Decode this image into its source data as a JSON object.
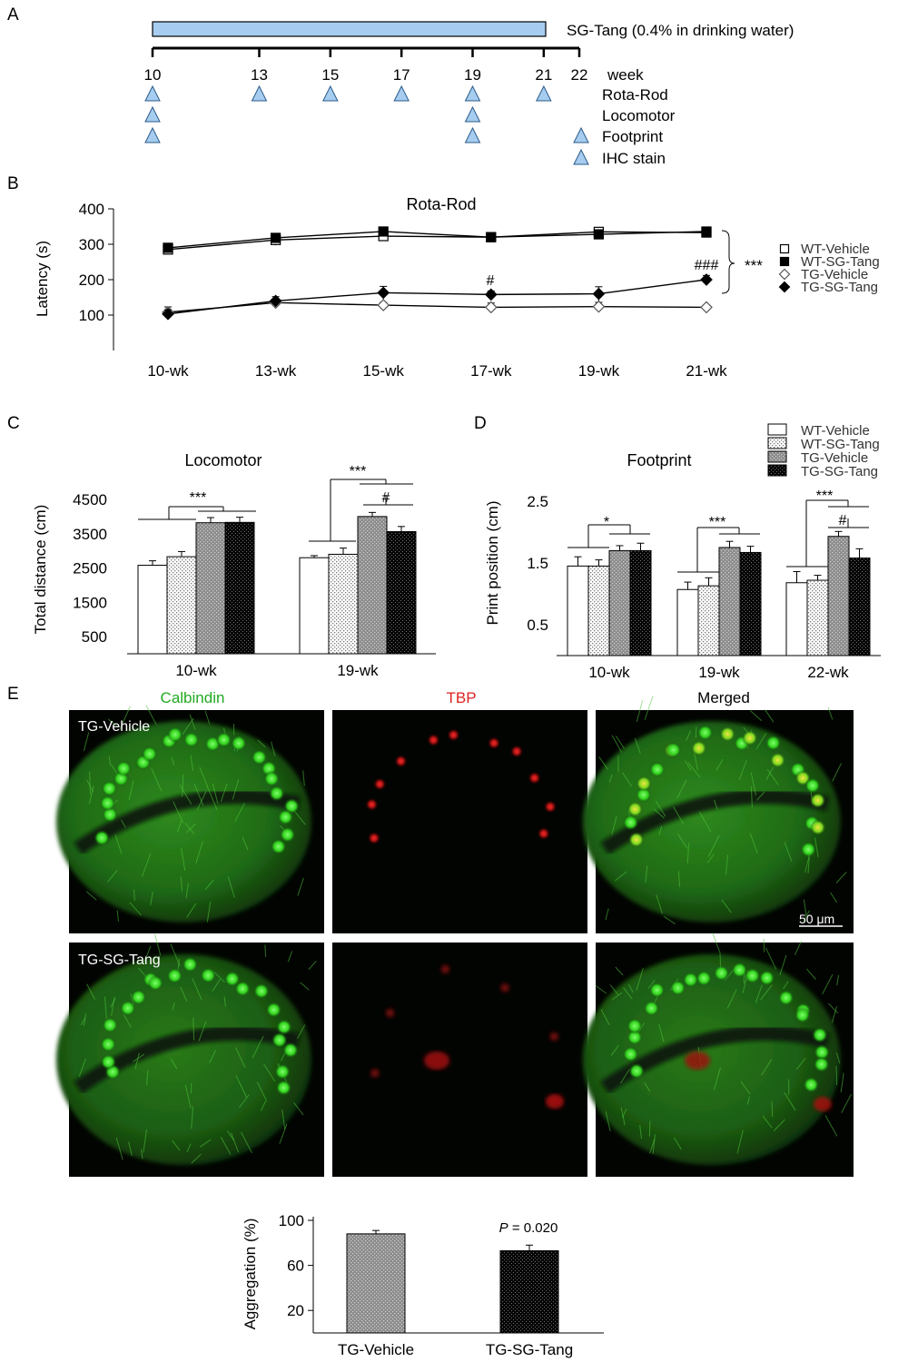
{
  "panel_letters": [
    "A",
    "B",
    "C",
    "D",
    "E"
  ],
  "panelA": {
    "bar_label": "SG-Tang (0.4% in drinking water)",
    "treatment_span_weeks": [
      10,
      21
    ],
    "weeks": [
      "10",
      "13",
      "15",
      "17",
      "19",
      "21",
      "22"
    ],
    "week_label": "week",
    "rows": [
      {
        "name": "Rota-Rod",
        "weeks": [
          10,
          13,
          15,
          17,
          19,
          21
        ]
      },
      {
        "name": "Locomotor",
        "weeks": [
          10,
          19
        ]
      },
      {
        "name": "Footprint",
        "weeks": [
          10,
          19
        ]
      },
      {
        "name": "IHC stain",
        "weeks": []
      }
    ],
    "legend_triangle_rows": [
      "Footprint",
      "IHC stain"
    ],
    "colors": {
      "bar": "#a6cdef",
      "triangle": "#a6cdef"
    }
  },
  "chart_data": [
    {
      "id": "B",
      "type": "line",
      "title": "Rota-Rod",
      "ylabel": "Latency (s)",
      "xlabel": "",
      "ylim": [
        0,
        400
      ],
      "yticks": [
        "100",
        "200",
        "300",
        "400"
      ],
      "categories": [
        "10-wk",
        "13-wk",
        "15-wk",
        "17-wk",
        "19-wk",
        "21-wk"
      ],
      "series": [
        {
          "name": "WT-Vehicle",
          "values": [
            285,
            312,
            323,
            320,
            335,
            333
          ],
          "errors": [
            12,
            15,
            13,
            6,
            8,
            6
          ],
          "marker": "square-open"
        },
        {
          "name": "WT-SG-Tang",
          "values": [
            290,
            318,
            336,
            320,
            328,
            336
          ],
          "errors": [
            12,
            12,
            8,
            6,
            8,
            6
          ],
          "marker": "square-filled"
        },
        {
          "name": "TG-Vehicle",
          "values": [
            108,
            135,
            128,
            122,
            124,
            122
          ],
          "errors": [
            15,
            10,
            8,
            12,
            12,
            6
          ],
          "marker": "diamond-open"
        },
        {
          "name": "TG-SG-Tang",
          "values": [
            103,
            140,
            163,
            158,
            160,
            200
          ],
          "errors": [
            12,
            12,
            18,
            10,
            20,
            12
          ],
          "marker": "diamond-filled"
        }
      ],
      "annotations": {
        "hash_17": "#",
        "hash_21": "###",
        "sig": "***"
      }
    },
    {
      "id": "C",
      "type": "bar",
      "title": "Locomotor",
      "ylabel": "Total distance (cm)",
      "ylim": [
        0,
        4500
      ],
      "yticks": [
        "500",
        "1500",
        "2500",
        "3500",
        "4500"
      ],
      "categories": [
        "10-wk",
        "19-wk"
      ],
      "series": [
        {
          "name": "WT-Vehicle",
          "values": [
            2580,
            2800
          ],
          "errors": [
            130,
            60
          ]
        },
        {
          "name": "WT-SG-Tang",
          "values": [
            2830,
            2900
          ],
          "errors": [
            150,
            180
          ]
        },
        {
          "name": "TG-Vehicle",
          "values": [
            3820,
            4000
          ],
          "errors": [
            150,
            120
          ]
        },
        {
          "name": "TG-SG-Tang",
          "values": [
            3830,
            3560
          ],
          "errors": [
            150,
            150
          ]
        }
      ],
      "annotations": {
        "sig_10": "***",
        "sig_19": "***",
        "hash_19": "#"
      }
    },
    {
      "id": "D",
      "type": "bar",
      "title": "Footprint",
      "ylabel": "Print position (cm)",
      "ylim": [
        0,
        2.5
      ],
      "yticks": [
        "0.5",
        "1.5",
        "2.5"
      ],
      "categories": [
        "10-wk",
        "19-wk",
        "22-wk"
      ],
      "series": [
        {
          "name": "WT-Vehicle",
          "values": [
            1.45,
            1.07,
            1.18
          ],
          "errors": [
            0.15,
            0.12,
            0.18
          ]
        },
        {
          "name": "WT-SG-Tang",
          "values": [
            1.45,
            1.13,
            1.22
          ],
          "errors": [
            0.1,
            0.13,
            0.08
          ]
        },
        {
          "name": "TG-Vehicle",
          "values": [
            1.7,
            1.75,
            1.93
          ],
          "errors": [
            0.08,
            0.1,
            0.08
          ]
        },
        {
          "name": "TG-SG-Tang",
          "values": [
            1.7,
            1.67,
            1.58
          ],
          "errors": [
            0.12,
            0.1,
            0.15
          ]
        }
      ],
      "annotations": {
        "sig_10": "*",
        "sig_19": "***",
        "sig_22": "***",
        "hash_22": "#"
      }
    },
    {
      "id": "E-bar",
      "type": "bar",
      "ylabel": "Aggregation (%)",
      "ylim": [
        0,
        100
      ],
      "yticks": [
        "20",
        "60",
        "100"
      ],
      "categories": [
        "TG-Vehicle",
        "TG-SG-Tang"
      ],
      "values": [
        88,
        73
      ],
      "errors": [
        3,
        5
      ],
      "annotation": "P = 0.020"
    }
  ],
  "panelE": {
    "columns": [
      "Calbindin",
      "TBP",
      "Merged"
    ],
    "column_colors": [
      "#22aa22",
      "#dd2222",
      "#000000"
    ],
    "rows": [
      "TG-Vehicle",
      "TG-SG-Tang"
    ],
    "scale_bar": "50 μm"
  }
}
